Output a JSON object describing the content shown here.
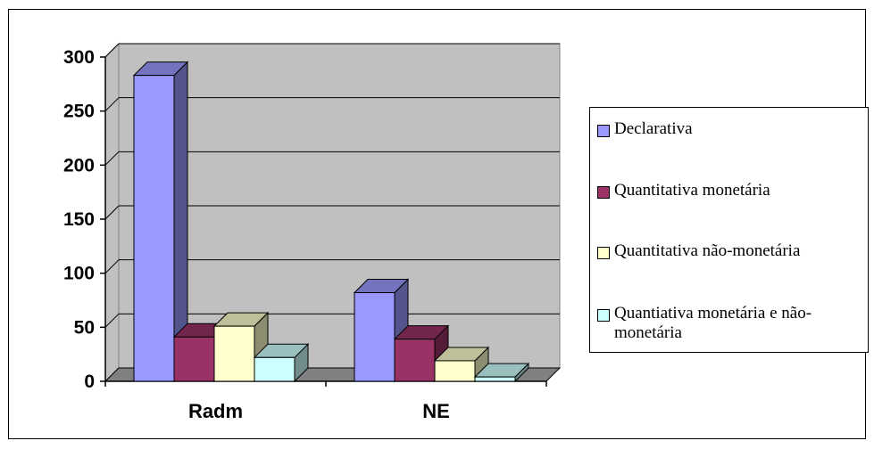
{
  "chart_data": {
    "type": "bar",
    "categories": [
      "Radm",
      "NE"
    ],
    "series": [
      {
        "name": "Declarativa",
        "values": [
          283,
          82
        ],
        "color": "#9999ff"
      },
      {
        "name": "Quantitativa monetária",
        "values": [
          41,
          39
        ],
        "color": "#993366"
      },
      {
        "name": "Quantitativa não-monetária",
        "values": [
          51,
          19
        ],
        "color": "#ffffcc"
      },
      {
        "name": "Quantiativa monetária e não-monetária",
        "values": [
          22,
          4
        ],
        "color": "#ccffff"
      }
    ],
    "yticks": [
      "0",
      "50",
      "100",
      "150",
      "200",
      "250",
      "300"
    ],
    "ylim": [
      0,
      300
    ],
    "grid": true,
    "legend_position": "right",
    "title": "",
    "xlabel": "",
    "ylabel": ""
  }
}
